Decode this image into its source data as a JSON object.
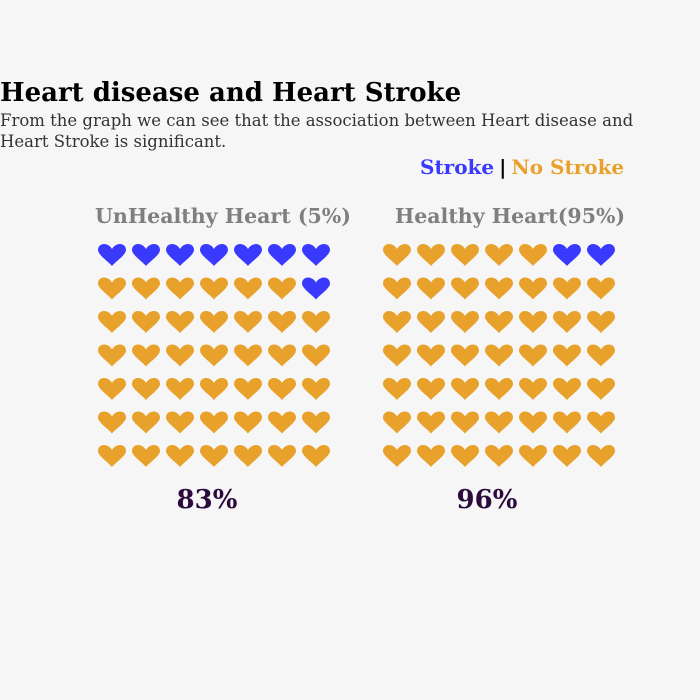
{
  "title": "Heart disease and Heart Stroke",
  "subtitle": "From the graph we can see that the association between Heart disease and Heart Stroke is significant.",
  "legend": {
    "stroke_label": "Stroke",
    "separator": "|",
    "no_stroke_label": "No Stroke"
  },
  "colors": {
    "stroke": "#3a3aff",
    "no_stroke": "#e8a22c",
    "panel_title": "#7f7f7f",
    "percent": "#2b0a3d",
    "background": "#f6f6f6"
  },
  "chart_data": [
    {
      "type": "waffle",
      "title": "UnHealthy Heart (5%)",
      "percent_label": "83%",
      "rows": 7,
      "cols": 7,
      "stroke_count": 8,
      "no_stroke_count": 41,
      "series": [
        {
          "name": "Stroke",
          "count": 8
        },
        {
          "name": "No Stroke",
          "count": 41
        }
      ]
    },
    {
      "type": "waffle",
      "title": "Healthy Heart(95%)",
      "percent_label": "96%",
      "rows": 7,
      "cols": 7,
      "stroke_count": 2,
      "no_stroke_count": 47,
      "series": [
        {
          "name": "Stroke",
          "count": 2
        },
        {
          "name": "No Stroke",
          "count": 47
        }
      ]
    }
  ]
}
